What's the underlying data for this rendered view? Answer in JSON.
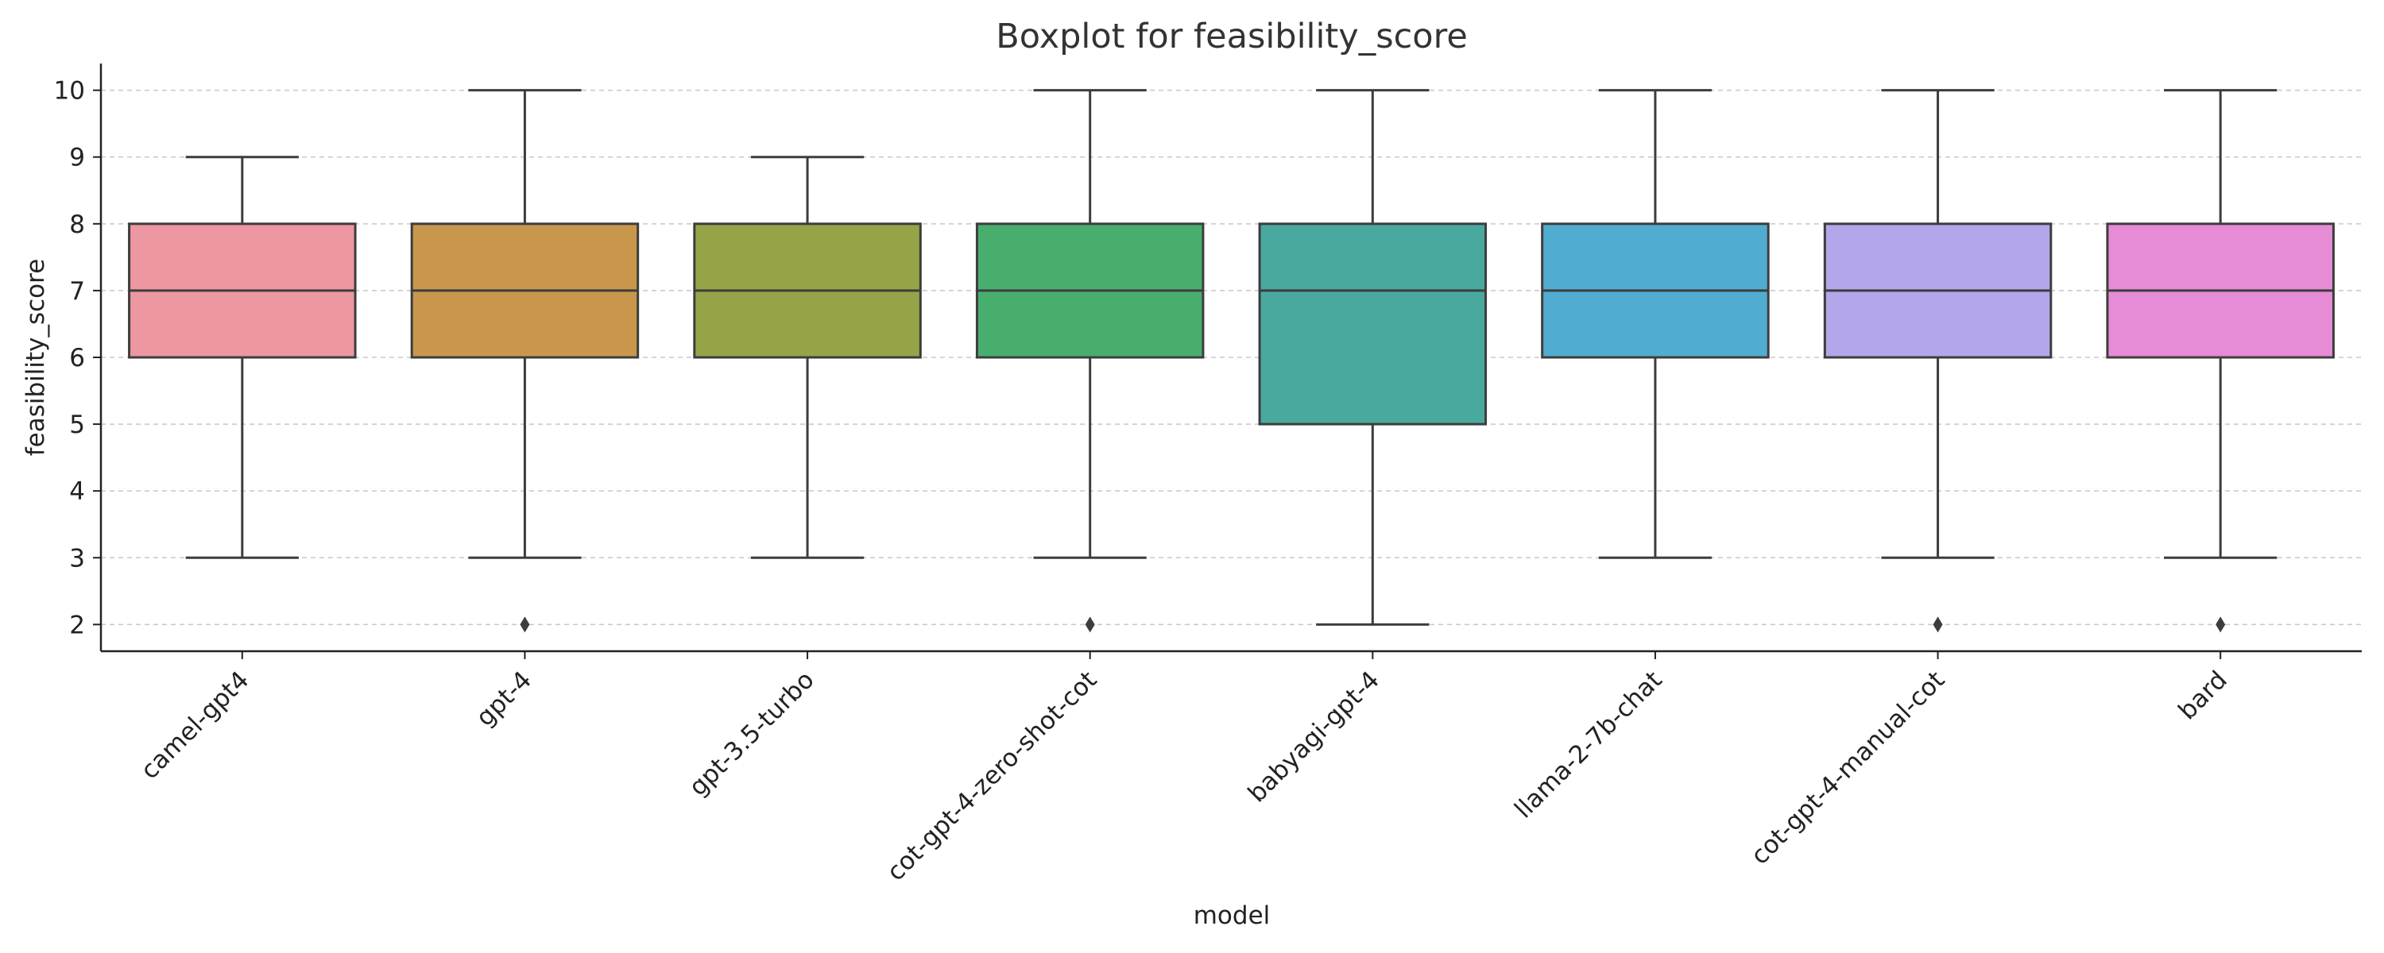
{
  "chart_data": {
    "type": "boxplot",
    "title": "Boxplot for feasibility_score",
    "xlabel": "model",
    "ylabel": "feasibility_score",
    "ylim": [
      1.6,
      10.4
    ],
    "yticks": [
      2,
      3,
      4,
      5,
      6,
      7,
      8,
      9,
      10
    ],
    "grid": "horizontal dashed",
    "categories": [
      "camel-gpt4",
      "gpt-4",
      "gpt-3.5-turbo",
      "cot-gpt-4-zero-shot-cot",
      "babyagi-gpt-4",
      "llama-2-7b-chat",
      "cot-gpt-4-manual-cot",
      "bard"
    ],
    "boxes": [
      {
        "category": "camel-gpt4",
        "whisker_low": 3,
        "q1": 6,
        "median": 7,
        "q3": 8,
        "whisker_high": 9,
        "outliers": [],
        "color": "#ec97a2"
      },
      {
        "category": "gpt-4",
        "whisker_low": 3,
        "q1": 6,
        "median": 7,
        "q3": 8,
        "whisker_high": 10,
        "outliers": [
          2
        ],
        "color": "#c9974c"
      },
      {
        "category": "gpt-3.5-turbo",
        "whisker_low": 3,
        "q1": 6,
        "median": 7,
        "q3": 8,
        "whisker_high": 9,
        "outliers": [],
        "color": "#96a447"
      },
      {
        "category": "cot-gpt-4-zero-shot-cot",
        "whisker_low": 3,
        "q1": 6,
        "median": 7,
        "q3": 8,
        "whisker_high": 10,
        "outliers": [
          2
        ],
        "color": "#48ae6e"
      },
      {
        "category": "babyagi-gpt-4",
        "whisker_low": 2,
        "q1": 5,
        "median": 7,
        "q3": 8,
        "whisker_high": 10,
        "outliers": [],
        "color": "#4aa99f"
      },
      {
        "category": "llama-2-7b-chat",
        "whisker_low": 3,
        "q1": 6,
        "median": 7,
        "q3": 8,
        "whisker_high": 10,
        "outliers": [],
        "color": "#51acd1"
      },
      {
        "category": "cot-gpt-4-manual-cot",
        "whisker_low": 3,
        "q1": 6,
        "median": 7,
        "q3": 8,
        "whisker_high": 10,
        "outliers": [
          2
        ],
        "color": "#b3a6ea"
      },
      {
        "category": "bard",
        "whisker_low": 3,
        "q1": 6,
        "median": 7,
        "q3": 8,
        "whisker_high": 10,
        "outliers": [
          2
        ],
        "color": "#e68bd5"
      }
    ]
  }
}
